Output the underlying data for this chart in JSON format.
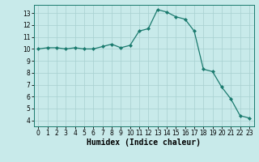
{
  "x": [
    0,
    1,
    2,
    3,
    4,
    5,
    6,
    7,
    8,
    9,
    10,
    11,
    12,
    13,
    14,
    15,
    16,
    17,
    18,
    19,
    20,
    21,
    22,
    23
  ],
  "y": [
    10.0,
    10.1,
    10.1,
    10.0,
    10.1,
    10.0,
    10.0,
    10.2,
    10.4,
    10.1,
    10.3,
    11.5,
    11.7,
    13.3,
    13.1,
    12.7,
    12.5,
    11.5,
    8.3,
    8.1,
    6.8,
    5.8,
    4.4,
    4.2
  ],
  "xlabel": "Humidex (Indice chaleur)",
  "xlim": [
    -0.5,
    23.5
  ],
  "ylim": [
    3.5,
    13.7
  ],
  "yticks": [
    4,
    5,
    6,
    7,
    8,
    9,
    10,
    11,
    12,
    13
  ],
  "xticks": [
    0,
    1,
    2,
    3,
    4,
    5,
    6,
    7,
    8,
    9,
    10,
    11,
    12,
    13,
    14,
    15,
    16,
    17,
    18,
    19,
    20,
    21,
    22,
    23
  ],
  "line_color": "#1a7a6e",
  "marker_color": "#1a7a6e",
  "bg_color": "#c8eaea",
  "grid_color": "#a8d0d0",
  "axis_fontsize": 6.5,
  "tick_fontsize": 5.5,
  "xlabel_fontsize": 7.0
}
